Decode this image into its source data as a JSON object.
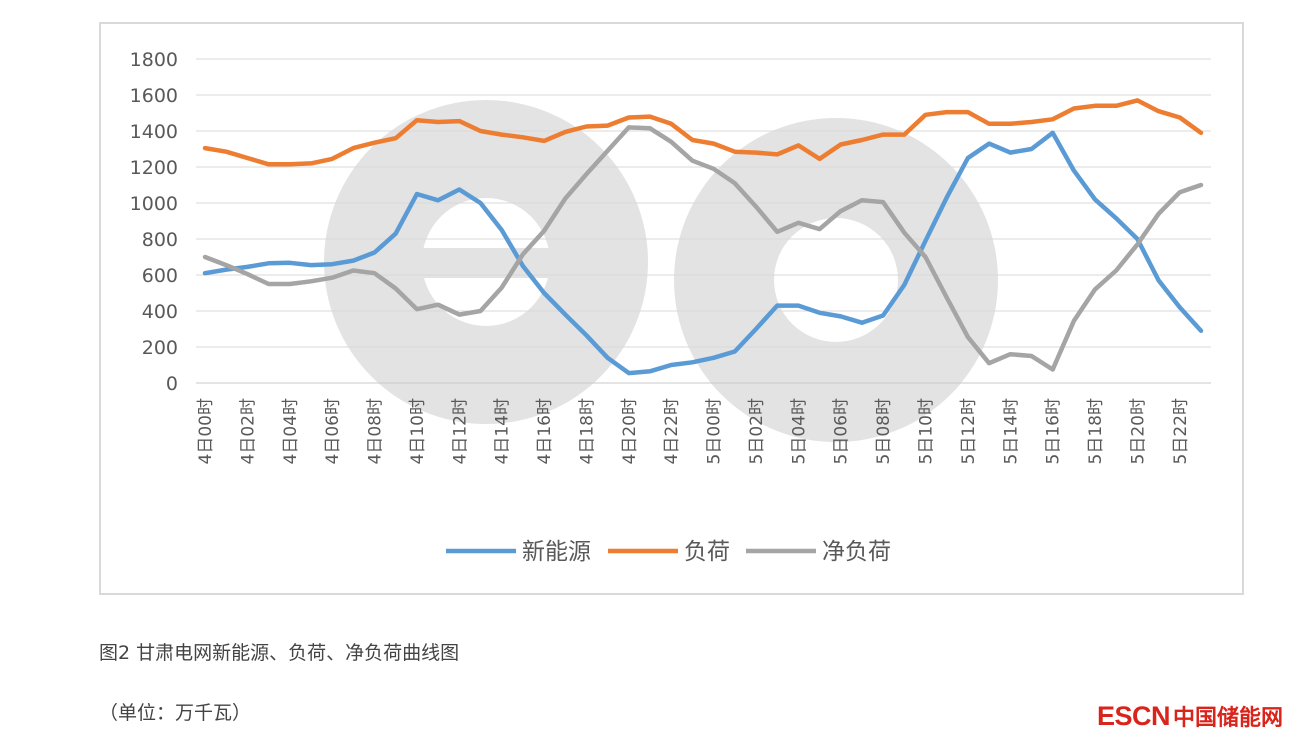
{
  "chart_data": {
    "type": "line",
    "ylim": [
      0,
      1800
    ],
    "y_ticks": [
      "0",
      "200",
      "400",
      "600",
      "800",
      "1000",
      "1200",
      "1400",
      "1600",
      "1800"
    ],
    "x_labels": [
      "4日00时",
      "4日02时",
      "4日04时",
      "4日06时",
      "4日08时",
      "4日10时",
      "4日12时",
      "4日14时",
      "4日16时",
      "4日18时",
      "4日20时",
      "4日22时",
      "5日00时",
      "5日02时",
      "5日04时",
      "5日06时",
      "5日08时",
      "5日10时",
      "5日12时",
      "5日14时",
      "5日16时",
      "5日18时",
      "5日20时",
      "5日22时"
    ],
    "x_count": 48,
    "grid": true,
    "legend_position": "bottom-center",
    "series": [
      {
        "name": "新能源",
        "color": "#5b9bd5",
        "values": [
          610,
          630,
          645,
          665,
          668,
          655,
          660,
          680,
          725,
          830,
          1050,
          1015,
          1075,
          1000,
          850,
          650,
          500,
          380,
          265,
          140,
          55,
          65,
          100,
          115,
          140,
          175,
          300,
          430,
          430,
          390,
          370,
          335,
          375,
          545,
          790,
          1030,
          1250,
          1330,
          1280,
          1300,
          1390,
          1180,
          1020,
          915,
          800,
          570,
          420,
          290
        ]
      },
      {
        "name": "负荷",
        "color": "#ed7d31",
        "values": [
          1305,
          1285,
          1250,
          1215,
          1215,
          1220,
          1245,
          1305,
          1335,
          1360,
          1460,
          1450,
          1455,
          1400,
          1380,
          1365,
          1345,
          1395,
          1425,
          1430,
          1475,
          1480,
          1440,
          1350,
          1330,
          1285,
          1280,
          1270,
          1320,
          1245,
          1325,
          1350,
          1380,
          1380,
          1490,
          1505,
          1505,
          1440,
          1440,
          1450,
          1465,
          1525,
          1540,
          1540,
          1570,
          1510,
          1475,
          1390
        ]
      },
      {
        "name": "净负荷",
        "color": "#a5a5a5",
        "values": [
          700,
          655,
          605,
          550,
          550,
          565,
          585,
          625,
          610,
          525,
          410,
          435,
          380,
          400,
          530,
          715,
          845,
          1025,
          1160,
          1290,
          1420,
          1415,
          1340,
          1235,
          1190,
          1110,
          980,
          840,
          890,
          855,
          955,
          1015,
          1005,
          835,
          700,
          475,
          255,
          110,
          160,
          150,
          75,
          345,
          520,
          625,
          770,
          940,
          1060,
          1100
        ]
      }
    ]
  },
  "caption": "图2 甘肃电网新能源、负荷、净负荷曲线图",
  "unit_note": "（单位：万千瓦）",
  "logo": {
    "latin": "ESCN",
    "cjk": "中国储能网",
    "color": "#d9241c"
  },
  "watermark": {
    "text": "eo",
    "color": "#e3e3e3"
  }
}
